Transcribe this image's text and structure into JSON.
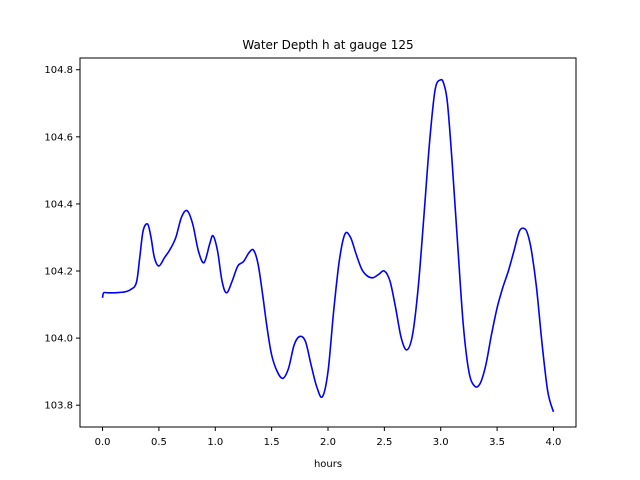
{
  "chart_data": {
    "type": "line",
    "title": "Water Depth h at gauge 125",
    "xlabel": "hours",
    "ylabel": "",
    "xlim": [
      -0.2,
      4.2
    ],
    "ylim": [
      103.735,
      104.835
    ],
    "xticks": [
      0.0,
      0.5,
      1.0,
      1.5,
      2.0,
      2.5,
      3.0,
      3.5,
      4.0
    ],
    "xtick_labels": [
      "0.0",
      "0.5",
      "1.0",
      "1.5",
      "2.0",
      "2.5",
      "3.0",
      "3.5",
      "4.0"
    ],
    "yticks": [
      103.8,
      104.0,
      104.2,
      104.4,
      104.6,
      104.8
    ],
    "ytick_labels": [
      "103.8",
      "104.0",
      "104.2",
      "104.4",
      "104.6",
      "104.8"
    ],
    "grid": false,
    "series": [
      {
        "color": "#0000ff",
        "x": [
          0.0,
          0.01,
          0.05,
          0.1,
          0.15,
          0.2,
          0.25,
          0.3,
          0.33,
          0.36,
          0.4,
          0.43,
          0.46,
          0.5,
          0.55,
          0.6,
          0.65,
          0.7,
          0.75,
          0.8,
          0.85,
          0.9,
          0.95,
          0.98,
          1.02,
          1.06,
          1.1,
          1.15,
          1.2,
          1.25,
          1.3,
          1.34,
          1.38,
          1.42,
          1.46,
          1.5,
          1.55,
          1.6,
          1.65,
          1.7,
          1.75,
          1.8,
          1.85,
          1.9,
          1.95,
          2.0,
          2.05,
          2.1,
          2.15,
          2.2,
          2.25,
          2.3,
          2.35,
          2.4,
          2.45,
          2.5,
          2.55,
          2.6,
          2.65,
          2.7,
          2.75,
          2.8,
          2.85,
          2.9,
          2.95,
          3.0,
          3.03,
          3.06,
          3.1,
          3.15,
          3.2,
          3.25,
          3.3,
          3.35,
          3.4,
          3.45,
          3.5,
          3.55,
          3.6,
          3.65,
          3.7,
          3.75,
          3.78,
          3.81,
          3.85,
          3.9,
          3.95,
          4.0
        ],
        "y": [
          104.12,
          104.135,
          104.135,
          104.135,
          104.136,
          104.138,
          104.145,
          104.165,
          104.24,
          104.32,
          104.34,
          104.3,
          104.24,
          104.215,
          104.24,
          104.265,
          104.3,
          104.36,
          104.38,
          104.34,
          104.26,
          104.225,
          104.28,
          104.305,
          104.26,
          104.17,
          104.135,
          104.17,
          104.215,
          104.228,
          104.255,
          104.262,
          104.22,
          104.13,
          104.03,
          103.95,
          103.9,
          103.88,
          103.91,
          103.98,
          104.005,
          103.99,
          103.92,
          103.855,
          103.825,
          103.9,
          104.08,
          104.23,
          104.31,
          104.3,
          104.25,
          104.205,
          104.185,
          104.18,
          104.19,
          104.2,
          104.17,
          104.09,
          104.0,
          103.965,
          104.01,
          104.15,
          104.36,
          104.58,
          104.74,
          104.77,
          104.755,
          104.7,
          104.53,
          104.28,
          104.04,
          103.9,
          103.857,
          103.865,
          103.92,
          104.01,
          104.09,
          104.15,
          104.2,
          104.26,
          104.32,
          104.325,
          104.3,
          104.25,
          104.15,
          103.98,
          103.84,
          103.78
        ]
      }
    ]
  }
}
